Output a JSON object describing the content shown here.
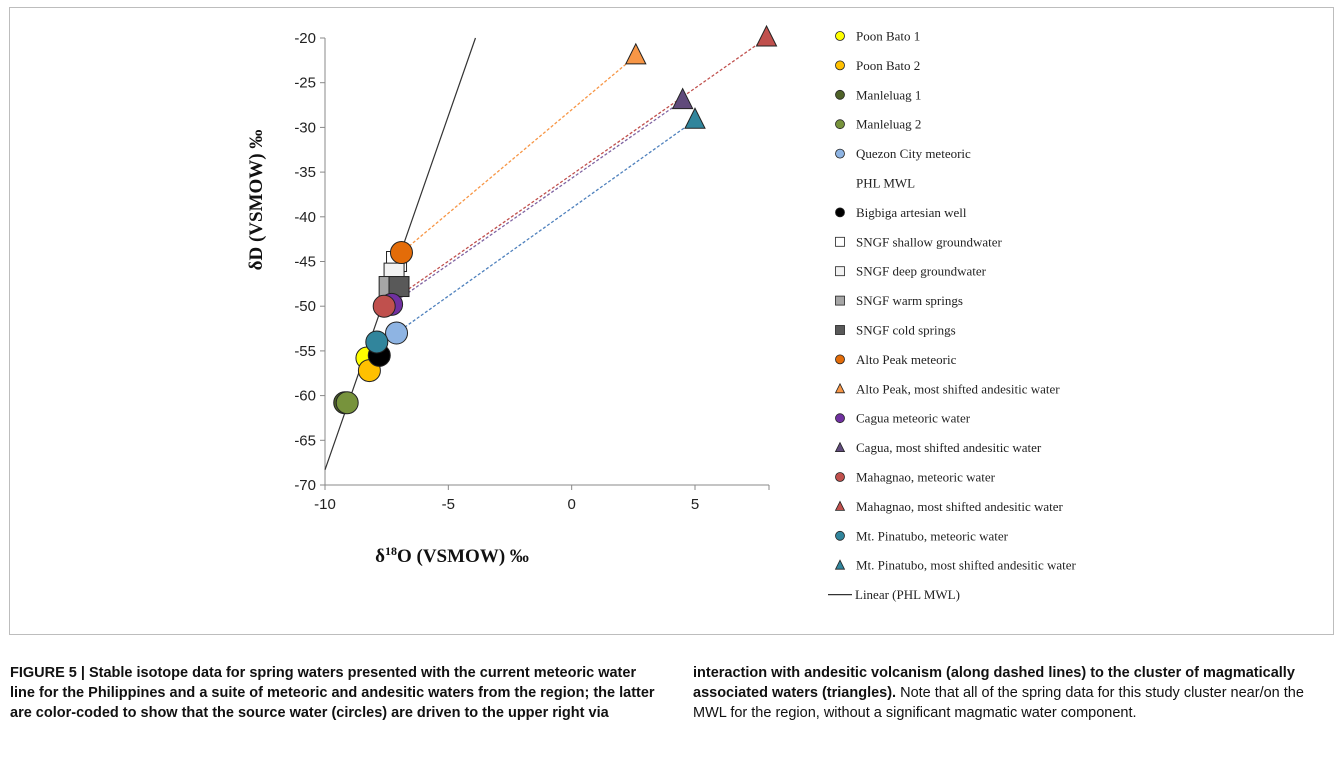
{
  "chart_data": {
    "type": "scatter",
    "xlabel": "δ18O (VSMOW) ‰",
    "ylabel": "δD (VSMOW) ‰",
    "xlim": [
      -10,
      8
    ],
    "ylim": [
      -70,
      -20
    ],
    "x_ticks": [
      -10,
      -5,
      0,
      5
    ],
    "y_ticks": [
      -20,
      -25,
      -30,
      -35,
      -40,
      -45,
      -50,
      -55,
      -60,
      -65,
      -70
    ],
    "grid": false,
    "legend_position": "right",
    "series": [
      {
        "name": "Poon Bato 1",
        "marker": "circle",
        "color": "#ffff00",
        "points": [
          [
            -8.3,
            -55.8
          ]
        ]
      },
      {
        "name": "Poon Bato 2",
        "marker": "circle",
        "color": "#ffc000",
        "points": [
          [
            -8.2,
            -57.2
          ]
        ]
      },
      {
        "name": "Manleluag 1",
        "marker": "circle",
        "color": "#4f6228",
        "points": [
          [
            -9.2,
            -60.8
          ]
        ]
      },
      {
        "name": "Manleluag 2",
        "marker": "circle",
        "color": "#77933c",
        "points": [
          [
            -9.1,
            -60.8
          ]
        ]
      },
      {
        "name": "Quezon City meteoric",
        "marker": "circle",
        "color": "#8eb4e3",
        "points": [
          [
            -7.1,
            -53.0
          ]
        ]
      },
      {
        "name": "PHL MWL",
        "marker": "none",
        "color": "#000000",
        "points": []
      },
      {
        "name": "Bigbiga artesian well",
        "marker": "circle",
        "color": "#000000",
        "points": [
          [
            -7.8,
            -55.5
          ]
        ]
      },
      {
        "name": "SNGF shallow groundwater",
        "marker": "square",
        "color": "#ffffff",
        "points": [
          [
            -7.1,
            -45.0
          ]
        ]
      },
      {
        "name": "SNGF deep groundwater",
        "marker": "square",
        "color": "#f2f2f2",
        "points": [
          [
            -7.2,
            -46.3
          ]
        ]
      },
      {
        "name": "SNGF warm springs",
        "marker": "square",
        "color": "#a6a6a6",
        "points": [
          [
            -7.4,
            -47.8
          ]
        ]
      },
      {
        "name": "SNGF cold springs",
        "marker": "square",
        "color": "#595959",
        "points": [
          [
            -7.0,
            -47.8
          ]
        ]
      },
      {
        "name": "Alto Peak meteoric",
        "marker": "circle",
        "color": "#e36c09",
        "points": [
          [
            -6.9,
            -44.0
          ]
        ]
      },
      {
        "name": "Alto Peak, most shifted andesitic water",
        "marker": "triangle",
        "color": "#f79646",
        "points": [
          [
            2.6,
            -22.0
          ]
        ]
      },
      {
        "name": "Cagua meteoric water",
        "marker": "circle",
        "color": "#7030a0",
        "points": [
          [
            -7.3,
            -49.8
          ]
        ]
      },
      {
        "name": "Cagua, most shifted andesitic water",
        "marker": "triangle",
        "color": "#604a7b",
        "points": [
          [
            4.5,
            -27.0
          ]
        ]
      },
      {
        "name": "Mahagnao, meteoric water",
        "marker": "circle",
        "color": "#c0504d",
        "points": [
          [
            -7.6,
            -50.0
          ]
        ]
      },
      {
        "name": "Mahagnao, most shifted andesitic water",
        "marker": "triangle",
        "color": "#c0504d",
        "points": [
          [
            7.9,
            -20.0
          ]
        ]
      },
      {
        "name": "Mt. Pinatubo, meteoric water",
        "marker": "circle",
        "color": "#31859c",
        "points": [
          [
            -7.9,
            -54.0
          ]
        ]
      },
      {
        "name": "Mt. Pinatubo, most shifted andesitic water",
        "marker": "triangle",
        "color": "#31859c",
        "points": [
          [
            5.0,
            -29.2
          ]
        ]
      },
      {
        "name": "Linear (PHL MWL)",
        "marker": "line",
        "color": "#000000",
        "points": [
          [
            -10.0,
            -68.3
          ],
          [
            -3.9,
            -20.0
          ]
        ]
      }
    ],
    "mixing_lines": [
      {
        "from": [
          -6.9,
          -44.0
        ],
        "to": [
          2.6,
          -22.0
        ],
        "color": "#f79646"
      },
      {
        "from": [
          -7.3,
          -49.8
        ],
        "to": [
          4.5,
          -27.0
        ],
        "color": "#8064a2"
      },
      {
        "from": [
          -7.6,
          -50.0
        ],
        "to": [
          7.9,
          -20.0
        ],
        "color": "#c0504d"
      },
      {
        "from": [
          -7.1,
          -53.0
        ],
        "to": [
          5.0,
          -29.2
        ],
        "color": "#4f81bd"
      }
    ]
  },
  "axis_titles": {
    "y_main": "δD (VSMOW) ‰",
    "x_main": "δ18O (VSMOW) ‰",
    "x_prefix": "δ",
    "x_sup": "18",
    "x_suffix": "O (VSMOW) ‰"
  },
  "caption": {
    "left": "FIGURE 5 | Stable isotope data for spring waters presented with the current meteoric water line for the Philippines and a suite of meteoric and andesitic waters from the region; the latter are color-coded to show that the source water (circles) are driven to the upper right via",
    "right_bold": "interaction with andesitic volcanism (along dashed lines) to the cluster of magmatically associated waters (triangles).",
    "right_normal": " Note that all of the spring data for this study cluster near/on the MWL for the region, without a significant magmatic water component."
  }
}
